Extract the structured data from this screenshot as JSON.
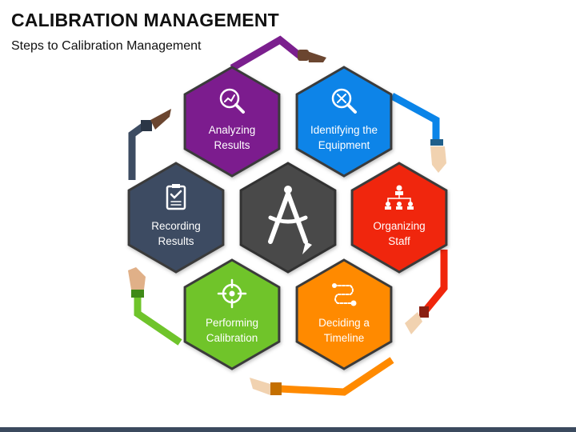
{
  "header": {
    "title": "CALIBRATION MANAGEMENT",
    "subtitle": "Steps to Calibration Management"
  },
  "steps": [
    {
      "key": "analyzing",
      "line1": "Analyzing",
      "line2": "Results",
      "color": "#7b1f8e",
      "icon": "magnifier-chart-icon"
    },
    {
      "key": "identifying",
      "line1": "Identifying the",
      "line2": "Equipment",
      "color": "#0a84e8",
      "icon": "magnifier-tools-icon"
    },
    {
      "key": "organizing",
      "line1": "Organizing",
      "line2": "Staff",
      "color": "#f0260c",
      "icon": "org-chart-icon"
    },
    {
      "key": "deciding",
      "line1": "Deciding a",
      "line2": "Timeline",
      "color": "#ff8a00",
      "icon": "timeline-icon"
    },
    {
      "key": "performing",
      "line1": "Performing",
      "line2": "Calibration",
      "color": "#6fc42b",
      "icon": "target-icon"
    },
    {
      "key": "recording",
      "line1": "Recording",
      "line2": "Results",
      "color": "#3d4c62",
      "icon": "clipboard-check-icon"
    }
  ],
  "center": {
    "color": "#4a4a4a",
    "icon": "compass-icon"
  },
  "colors": {
    "border_dark": "#3a3a3a",
    "connector_purple": "#7b1f8e",
    "connector_blue": "#0a84e8",
    "connector_red": "#f0260c",
    "connector_orange": "#ff8a00",
    "connector_green": "#6fc42b",
    "connector_slate": "#3d4c62"
  }
}
